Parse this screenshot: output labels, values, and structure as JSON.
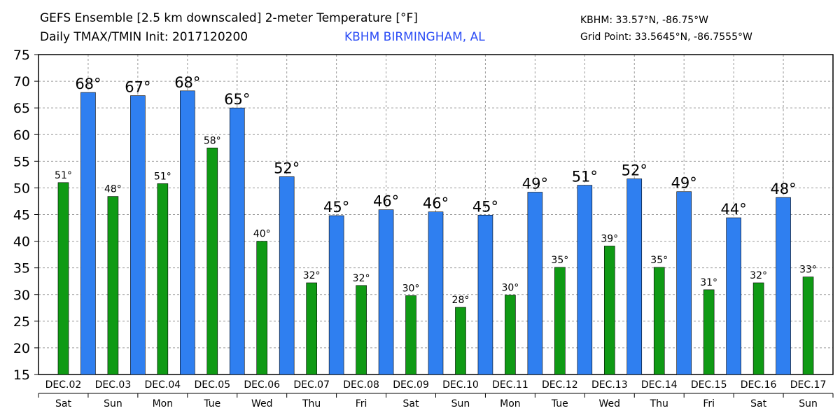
{
  "header": {
    "title": "GEFS Ensemble [2.5 km downscaled] 2-meter Temperature [°F]",
    "subtitle": "Daily TMAX/TMIN Init: 2017120200",
    "station": "KBHM BIRMINGHAM, AL",
    "station_location": "KBHM: 33.57°N, -86.75°W",
    "grid_point": "Grid Point: 33.5645°N, -86.7555°W"
  },
  "colors": {
    "tmax": "#2f7ff0",
    "tmin": "#0f9a14",
    "station_text": "#2b4cf5",
    "grid": "#9a9a9a"
  },
  "chart_data": {
    "type": "bar",
    "title": "GEFS Ensemble [2.5 km downscaled] 2-meter Temperature [°F]",
    "ylim": [
      15,
      75
    ],
    "yticks": [
      15,
      20,
      25,
      30,
      35,
      40,
      45,
      50,
      55,
      60,
      65,
      70,
      75
    ],
    "grid": true,
    "days": [
      {
        "date": "DEC.02",
        "weekday": "Sat"
      },
      {
        "date": "DEC.03",
        "weekday": "Sun"
      },
      {
        "date": "DEC.04",
        "weekday": "Mon"
      },
      {
        "date": "DEC.05",
        "weekday": "Tue"
      },
      {
        "date": "DEC.06",
        "weekday": "Wed"
      },
      {
        "date": "DEC.07",
        "weekday": "Thu"
      },
      {
        "date": "DEC.08",
        "weekday": "Fri"
      },
      {
        "date": "DEC.09",
        "weekday": "Sat"
      },
      {
        "date": "DEC.10",
        "weekday": "Sun"
      },
      {
        "date": "DEC.11",
        "weekday": "Mon"
      },
      {
        "date": "DEC.12",
        "weekday": "Tue"
      },
      {
        "date": "DEC.13",
        "weekday": "Wed"
      },
      {
        "date": "DEC.14",
        "weekday": "Thu"
      },
      {
        "date": "DEC.15",
        "weekday": "Fri"
      },
      {
        "date": "DEC.16",
        "weekday": "Sat"
      },
      {
        "date": "DEC.17",
        "weekday": "Sun"
      }
    ],
    "series": [
      {
        "key": "tmin",
        "values": [
          51,
          48.4,
          50.8,
          57.5,
          40,
          32.2,
          31.7,
          29.8,
          27.6,
          29.9,
          35.1,
          39.1,
          35.1,
          30.9,
          32.2,
          33.3
        ],
        "labels": [
          "51°",
          "48°",
          "51°",
          "58°",
          "40°",
          "32°",
          "32°",
          "30°",
          "28°",
          "30°",
          "35°",
          "39°",
          "35°",
          "31°",
          "32°",
          "33°"
        ]
      },
      {
        "key": "tmax",
        "values": [
          67.9,
          67.3,
          68.2,
          65,
          52.1,
          44.8,
          45.9,
          45.5,
          44.9,
          49.2,
          50.5,
          51.7,
          49.3,
          44.4,
          48.2
        ],
        "labels": [
          "68°",
          "67°",
          "68°",
          "65°",
          "52°",
          "45°",
          "46°",
          "46°",
          "45°",
          "49°",
          "51°",
          "52°",
          "49°",
          "44°",
          "48°"
        ]
      }
    ]
  }
}
